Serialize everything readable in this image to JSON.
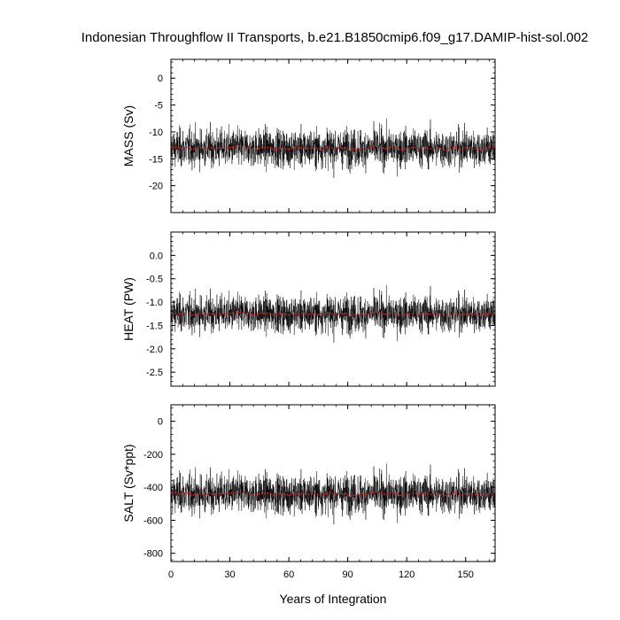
{
  "title": "Indonesian Throughflow II Transports, b.e21.B1850cmip6.f09_g17.DAMIP-hist-sol.002",
  "xlabel": "Years of Integration",
  "colors": {
    "raw": "#000000",
    "smoothed": "#d62020"
  },
  "chart_data": [
    {
      "type": "line",
      "ylabel": "MASS (Sv)",
      "xlim": [
        0,
        165
      ],
      "ylim": [
        -25,
        3.5
      ],
      "xticks": [
        "0",
        "30",
        "60",
        "90",
        "120",
        "150"
      ],
      "yticks": [
        "0",
        "-5",
        "-10",
        "-15",
        "-20"
      ],
      "series": [
        {
          "style": "thin black",
          "mean": -13,
          "spread": 4.5
        },
        {
          "style": "red running mean",
          "mean": -13,
          "spread": 1.0
        }
      ]
    },
    {
      "type": "line",
      "ylabel": "HEAT (PW)",
      "xlim": [
        0,
        165
      ],
      "ylim": [
        -2.8,
        0.5
      ],
      "xticks": [
        "0",
        "30",
        "60",
        "90",
        "120",
        "150"
      ],
      "yticks": [
        "0.0",
        "-0.5",
        "-1.0",
        "-1.5",
        "-2.0",
        "-2.5"
      ],
      "series": [
        {
          "style": "thin black",
          "mean": -1.25,
          "spread": 0.5
        },
        {
          "style": "red running mean",
          "mean": -1.25,
          "spread": 0.1
        }
      ]
    },
    {
      "type": "line",
      "ylabel": "SALT (Sv*ppt)",
      "xlim": [
        0,
        165
      ],
      "ylim": [
        -850,
        100
      ],
      "xticks": [
        "0",
        "30",
        "60",
        "90",
        "120",
        "150"
      ],
      "yticks": [
        "0",
        "-200",
        "-400",
        "-600",
        "-800"
      ],
      "series": [
        {
          "style": "thin black",
          "mean": -440,
          "spread": 150
        },
        {
          "style": "red running mean",
          "mean": -440,
          "spread": 35
        }
      ]
    }
  ]
}
